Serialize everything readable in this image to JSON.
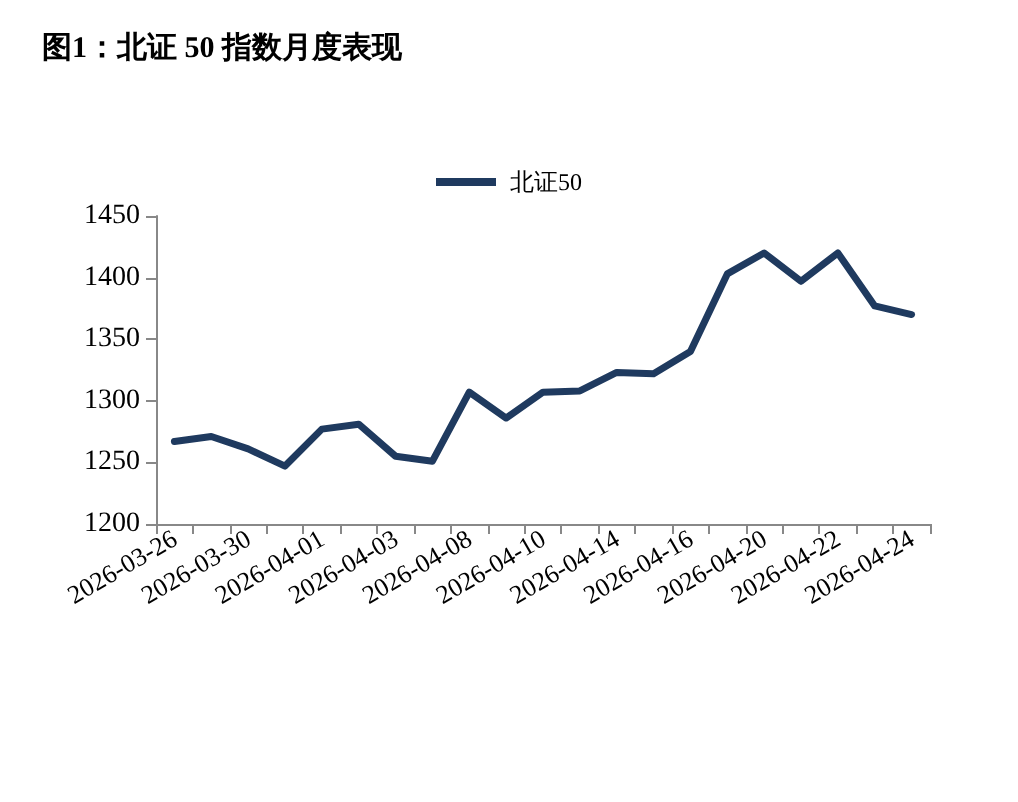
{
  "chart_data": {
    "type": "line",
    "title": "图1：北证 50 指数月度表现",
    "categories": [
      "2026-03-26",
      null,
      "2026-03-30",
      null,
      "2026-04-01",
      null,
      "2026-04-03",
      null,
      "2026-04-08",
      null,
      "2026-04-10",
      null,
      "2026-04-14",
      null,
      "2026-04-16",
      null,
      "2026-04-20",
      null,
      "2026-04-22",
      null,
      "2026-04-24"
    ],
    "series": [
      {
        "name": "北证50",
        "color": "#1f3a5f",
        "values": [
          1267,
          1271,
          1261,
          1247,
          1277,
          1281,
          1255,
          1251,
          1307,
          1286,
          1307,
          1308,
          1323,
          1322,
          1340,
          1403,
          1420,
          1397,
          1420,
          1377,
          1370
        ]
      }
    ],
    "ylim": [
      1200,
      1450
    ],
    "yticks": [
      1200,
      1250,
      1300,
      1350,
      1400,
      1450
    ],
    "grid": false,
    "legend": "top",
    "marker": "none",
    "line_style": "solid"
  }
}
